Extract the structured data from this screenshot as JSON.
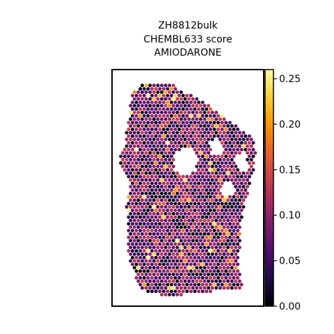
{
  "figure": {
    "title_lines": [
      "ZH8812bulk",
      "CHEMBL633 score",
      "AMIODARONE"
    ]
  },
  "chart_data": {
    "type": "scatter",
    "description_of_marks": "spatial spots colored by score",
    "colormap": "inferno",
    "colorbar": {
      "range": [
        0.0,
        0.26
      ],
      "ticks": [
        0.0,
        0.05,
        0.1,
        0.15,
        0.2,
        0.25
      ],
      "tick_labels": [
        "0.00",
        "0.05",
        "0.10",
        "0.15",
        "0.20",
        "0.25"
      ]
    },
    "axes_visible": false,
    "grid": false,
    "legend": "colorbar-right",
    "value_range": [
      0.0,
      0.26
    ],
    "colors": {
      "frame": "#000000",
      "background": "#ffffff",
      "colormap_stops": [
        "#000004",
        "#1b0c41",
        "#4a0c6b",
        "#781c6d",
        "#a52c60",
        "#cf4446",
        "#ed6925",
        "#fb9b06",
        "#f7d13d",
        "#fcffa4"
      ]
    }
  }
}
